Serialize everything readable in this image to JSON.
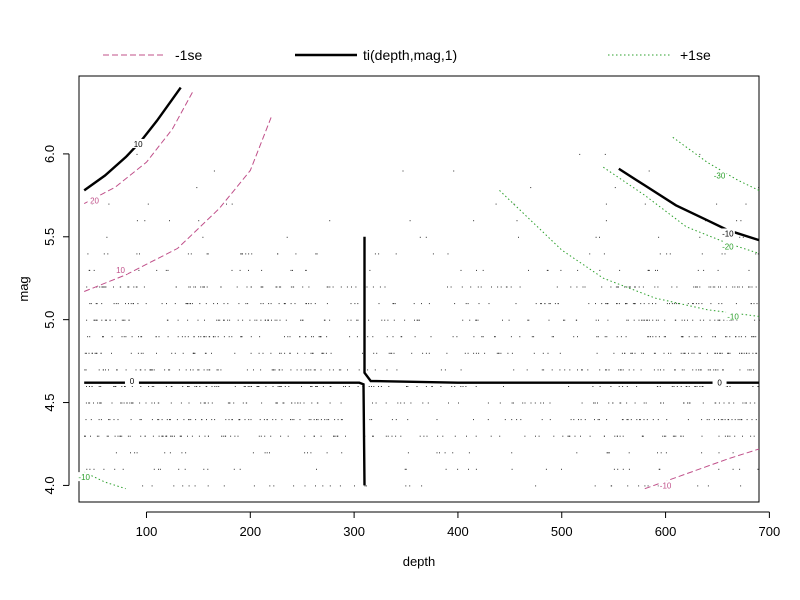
{
  "chart_data": {
    "type": "contour",
    "xlabel": "depth",
    "ylabel": "mag",
    "xlim": [
      35,
      690
    ],
    "ylim": [
      3.9,
      6.47
    ],
    "xticks": [
      "100",
      "200",
      "300",
      "400",
      "500",
      "600",
      "700"
    ],
    "yticks": [
      "4.0",
      "4.5",
      "5.0",
      "5.5",
      "6.0"
    ],
    "legend": {
      "position": "top",
      "entries": [
        {
          "label": "-1se",
          "color": "#c0508a",
          "style": "dashed"
        },
        {
          "label": "ti(depth,mag,1)",
          "color": "#000000",
          "style": "solid"
        },
        {
          "label": "+1se",
          "color": "#2ca02c",
          "style": "dotted"
        }
      ]
    },
    "series": [
      {
        "name": "ti(depth,mag,1)",
        "color": "#000000",
        "style": "solid",
        "contours": [
          {
            "level": "10",
            "label_at": [
              92,
              6.06
            ],
            "points": [
              [
                40,
                5.78
              ],
              [
                60,
                5.87
              ],
              [
                80,
                5.98
              ],
              [
                95,
                6.08
              ],
              [
                110,
                6.2
              ],
              [
                125,
                6.33
              ],
              [
                133,
                6.4
              ]
            ]
          },
          {
            "level": "-10",
            "label_at": [
              660,
              5.52
            ],
            "points": [
              [
                555,
                5.91
              ],
              [
                580,
                5.81
              ],
              [
                610,
                5.69
              ],
              [
                640,
                5.6
              ],
              [
                660,
                5.54
              ],
              [
                690,
                5.48
              ]
            ]
          },
          {
            "level": "0",
            "label_at": [
              86,
              4.63
            ],
            "points": [
              [
                40,
                4.62
              ],
              [
                150,
                4.62
              ],
              [
                250,
                4.62
              ],
              [
                305,
                4.62
              ],
              [
                309,
                4.61
              ],
              [
                310,
                4.0
              ]
            ]
          },
          {
            "level": "",
            "points": [
              [
                310,
                5.5
              ],
              [
                310,
                4.68
              ],
              [
                316,
                4.63
              ],
              [
                400,
                4.62
              ],
              [
                500,
                4.62
              ],
              [
                600,
                4.62
              ],
              [
                690,
                4.62
              ]
            ]
          }
        ],
        "extra_labels": [
          {
            "level": "0",
            "at": [
              652,
              4.62
            ]
          }
        ]
      },
      {
        "name": "-1se",
        "color": "#c0508a",
        "style": "dashed",
        "contours": [
          {
            "level": "20",
            "label_at": [
              50,
              5.72
            ],
            "points": [
              [
                40,
                5.7
              ],
              [
                70,
                5.8
              ],
              [
                100,
                5.95
              ],
              [
                125,
                6.15
              ],
              [
                145,
                6.38
              ]
            ]
          },
          {
            "level": "10",
            "label_at": [
              75,
              5.3
            ],
            "points": [
              [
                40,
                5.17
              ],
              [
                80,
                5.27
              ],
              [
                130,
                5.43
              ],
              [
                170,
                5.67
              ],
              [
                200,
                5.9
              ],
              [
                220,
                6.22
              ]
            ]
          },
          {
            "level": "-10",
            "label_at": [
              600,
              4.0
            ],
            "points": [
              [
                580,
                3.98
              ],
              [
                620,
                4.07
              ],
              [
                660,
                4.16
              ],
              [
                690,
                4.22
              ]
            ]
          }
        ]
      },
      {
        "name": "+1se",
        "color": "#2ca02c",
        "style": "dotted",
        "contours": [
          {
            "level": "-10",
            "label_at": [
              40,
              4.05
            ],
            "points": [
              [
                40,
                4.08
              ],
              [
                60,
                4.02
              ],
              [
                80,
                3.98
              ]
            ]
          },
          {
            "level": "-30",
            "label_at": [
              652,
              5.87
            ],
            "points": [
              [
                607,
                6.1
              ],
              [
                640,
                5.95
              ],
              [
                670,
                5.84
              ],
              [
                690,
                5.78
              ]
            ]
          },
          {
            "level": "-20",
            "label_at": [
              660,
              5.44
            ],
            "points": [
              [
                540,
                5.92
              ],
              [
                580,
                5.75
              ],
              [
                620,
                5.56
              ],
              [
                660,
                5.46
              ],
              [
                690,
                5.4
              ]
            ]
          },
          {
            "level": "-10",
            "label_at": [
              665,
              5.02
            ],
            "points": [
              [
                440,
                5.78
              ],
              [
                470,
                5.6
              ],
              [
                500,
                5.42
              ],
              [
                540,
                5.25
              ],
              [
                590,
                5.13
              ],
              [
                640,
                5.06
              ],
              [
                690,
                5.02
              ]
            ]
          }
        ]
      }
    ],
    "scatter_bands": [
      4.0,
      4.1,
      4.2,
      4.3,
      4.4,
      4.5,
      4.6,
      4.7,
      4.8,
      4.9,
      5.0,
      5.1,
      5.2,
      5.3,
      5.4,
      5.5,
      5.6,
      5.7,
      5.8,
      5.9,
      6.0
    ],
    "grid": false
  }
}
